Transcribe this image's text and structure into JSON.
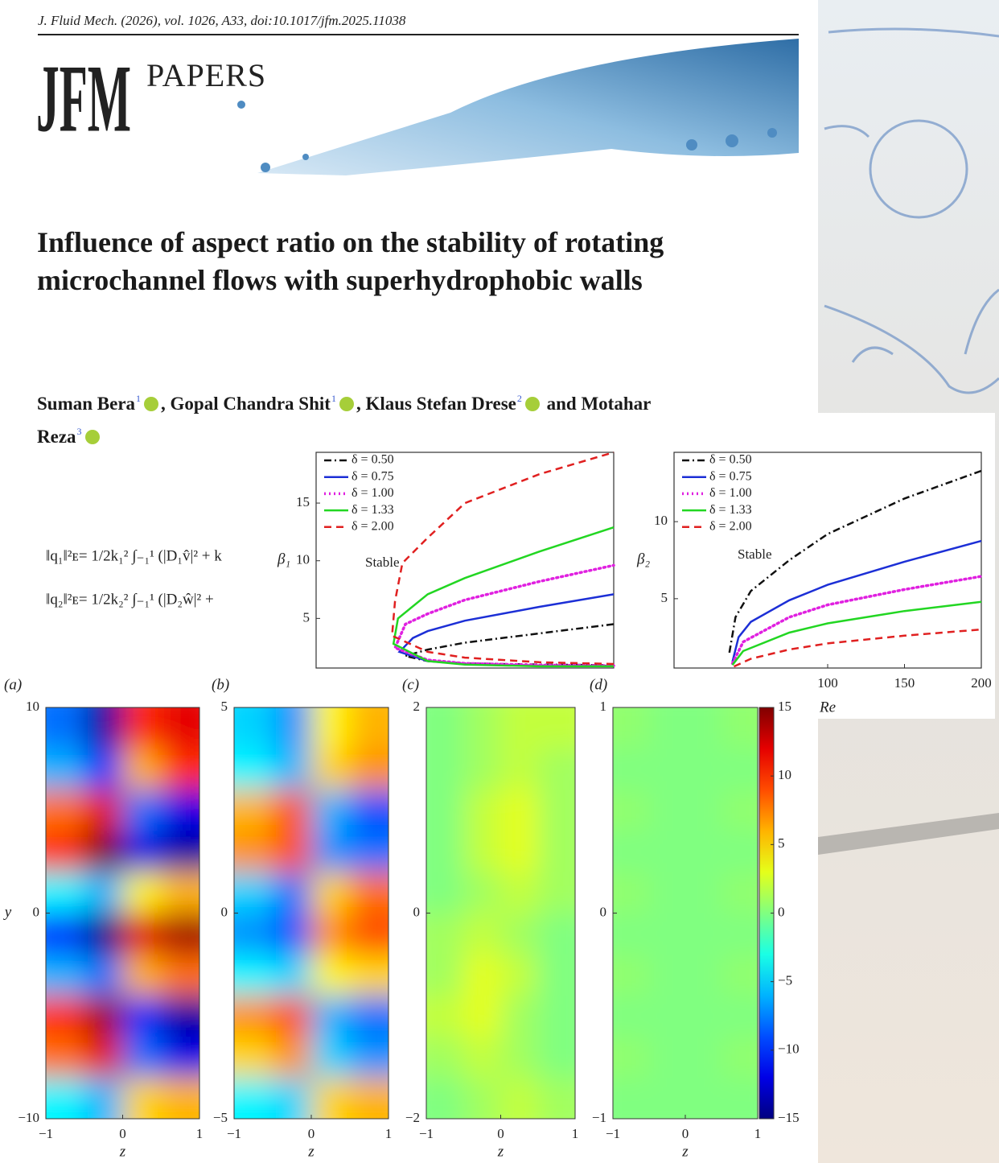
{
  "header": {
    "citation": "J. Fluid Mech. (2026), vol. 1026, A33, doi:10.1017/jfm.2025.11038",
    "logo": "JFM",
    "logo_subtitle": "PAPERS"
  },
  "title": "Influence of aspect ratio on the stability of rotating microchannel flows with superhydrophobic walls",
  "authors": [
    {
      "name": "Suman Bera",
      "affiliation": "1"
    },
    {
      "name": "Gopal Chandra Shit",
      "affiliation": "1"
    },
    {
      "name": "Klaus Stefan Drese",
      "affiliation": "2"
    },
    {
      "name": "Motahar Reza",
      "affiliation": "3"
    }
  ],
  "author_conjunction": "and",
  "equations": [
    "‖q₁‖²ᴇ= 1/2k₁² ∫₋₁¹ (|D₁v̂|² + k",
    "‖q₂‖²ᴇ= 1/2k₂² ∫₋₁¹ (|D₂ŵ|² +"
  ],
  "chart_data": [
    {
      "type": "line",
      "y_label": "β₁",
      "annotations": [
        "Stable"
      ],
      "xlim": [
        0,
        200
      ],
      "ylim": [
        0.7,
        19.4
      ],
      "yticks": [
        5,
        10,
        15
      ],
      "legend": "upper-left",
      "series": [
        {
          "name": "δ = 0.50",
          "color": "#111111",
          "dash": "dashdot",
          "x": [
            200,
            150,
            100,
            75,
            60,
            75,
            100,
            150,
            200
          ],
          "values": [
            0.95,
            1.0,
            1.1,
            1.3,
            1.75,
            2.3,
            2.9,
            3.7,
            4.5
          ]
        },
        {
          "name": "δ = 0.75",
          "color": "#1c2fd6",
          "dash": "solid",
          "x": [
            200,
            150,
            100,
            75,
            56,
            65,
            75,
            100,
            150,
            200
          ],
          "values": [
            0.9,
            0.9,
            1.05,
            1.3,
            2.1,
            3.3,
            3.9,
            4.8,
            6.0,
            7.1
          ]
        },
        {
          "name": "δ = 1.00",
          "color": "#e020e0",
          "dash": "dotted",
          "x": [
            200,
            150,
            100,
            75,
            53,
            60,
            75,
            100,
            150,
            200
          ],
          "values": [
            0.9,
            0.95,
            1.1,
            1.4,
            2.45,
            4.5,
            5.4,
            6.6,
            8.2,
            9.6
          ]
        },
        {
          "name": "δ = 1.33",
          "color": "#22d622",
          "dash": "solid",
          "x": [
            200,
            150,
            100,
            75,
            52,
            55,
            75,
            100,
            150,
            200
          ],
          "values": [
            0.85,
            0.85,
            1.0,
            1.3,
            2.8,
            5,
            7.1,
            8.5,
            10.8,
            12.9
          ]
        },
        {
          "name": "δ = 2.00",
          "color": "#e02020",
          "dash": "dashed",
          "x": [
            200,
            150,
            100,
            75,
            51,
            53,
            58,
            75,
            100,
            150,
            200
          ],
          "values": [
            1.05,
            1.2,
            1.6,
            2.1,
            3.5,
            6.5,
            9.8,
            12,
            15,
            17.5,
            19.4
          ]
        }
      ]
    },
    {
      "type": "line",
      "y_label": "β₂",
      "x_label": "Re",
      "annotations": [
        "Stable"
      ],
      "xlim": [
        0,
        200
      ],
      "ylim": [
        0.5,
        14.5
      ],
      "yticks": [
        5,
        10
      ],
      "xticks": [
        100,
        150,
        200
      ],
      "legend": "upper-left",
      "series": [
        {
          "name": "δ = 0.50",
          "color": "#111111",
          "dash": "dashdot",
          "x": [
            36,
            40,
            50,
            75,
            100,
            150,
            200
          ],
          "values": [
            1.5,
            3.8,
            5.5,
            7.5,
            9.2,
            11.5,
            13.3
          ]
        },
        {
          "name": "δ = 0.75",
          "color": "#1c2fd6",
          "dash": "solid",
          "x": [
            38,
            42,
            50,
            75,
            100,
            150,
            200
          ],
          "values": [
            0.9,
            2.5,
            3.5,
            4.9,
            5.9,
            7.4,
            8.75
          ]
        },
        {
          "name": "δ = 1.00",
          "color": "#e020e0",
          "dash": "dotted",
          "x": [
            38,
            45,
            75,
            100,
            150,
            200
          ],
          "values": [
            0.8,
            2.2,
            3.8,
            4.6,
            5.6,
            6.45
          ]
        },
        {
          "name": "δ = 1.33",
          "color": "#22d622",
          "dash": "solid",
          "x": [
            38,
            45,
            75,
            100,
            150,
            200
          ],
          "values": [
            0.7,
            1.6,
            2.8,
            3.4,
            4.2,
            4.8
          ]
        },
        {
          "name": "δ = 2.00",
          "color": "#e02020",
          "dash": "dashed",
          "x": [
            39,
            50,
            75,
            100,
            150,
            200
          ],
          "values": [
            0.6,
            1.1,
            1.7,
            2.1,
            2.6,
            3.0
          ]
        }
      ]
    },
    {
      "type": "heatmap",
      "panel_label": "(a)",
      "x_label": "z",
      "y_label": "y",
      "colormap": "jet",
      "clim": [
        -15,
        15
      ],
      "xlim": [
        -1,
        1
      ],
      "xticks": [
        {
          "value": -1,
          "label": "−1"
        },
        0,
        1
      ],
      "ylim": [
        -10,
        10
      ],
      "yticks": [
        {
          "value": -10,
          "label": "−10"
        },
        0,
        10
      ],
      "x": [
        -0.75,
        -0.25,
        0.25,
        0.75
      ],
      "y": [
        9,
        7,
        5,
        3,
        1,
        -1,
        -3,
        -5,
        -7,
        -9
      ],
      "values": [
        [
          -8,
          -14,
          10,
          12
        ],
        [
          -6,
          -10,
          6,
          10
        ],
        [
          8,
          12,
          -8,
          -12
        ],
        [
          10,
          15,
          -12,
          -14
        ],
        [
          -4,
          -6,
          4,
          6
        ],
        [
          -10,
          -15,
          12,
          14
        ],
        [
          -6,
          -8,
          6,
          8
        ],
        [
          10,
          14,
          -10,
          -14
        ],
        [
          8,
          12,
          -8,
          -12
        ],
        [
          -4,
          -6,
          5,
          6
        ]
      ]
    },
    {
      "type": "heatmap",
      "panel_label": "(b)",
      "x_label": "z",
      "colormap": "jet",
      "clim": [
        -15,
        15
      ],
      "xlim": [
        -1,
        1
      ],
      "xticks": [
        {
          "value": -1,
          "label": "−1"
        },
        0,
        1
      ],
      "ylim": [
        -5,
        5
      ],
      "yticks": [
        {
          "value": -5,
          "label": "−5"
        },
        0,
        5
      ],
      "x": [
        -0.75,
        -0.25,
        0.25,
        0.75
      ],
      "y": [
        4.5,
        3.5,
        2.5,
        1.5,
        0.5,
        -0.5,
        -1.5,
        -2.5,
        -3.5,
        -4.5
      ],
      "values": [
        [
          -5,
          -7,
          4,
          6
        ],
        [
          -4,
          -6,
          5,
          7
        ],
        [
          6,
          9,
          -6,
          -9
        ],
        [
          7,
          9,
          -7,
          -8
        ],
        [
          -5,
          -8,
          5,
          8
        ],
        [
          -7,
          -9,
          7,
          9
        ],
        [
          -4,
          -5,
          4,
          5
        ],
        [
          7,
          9,
          -6,
          -8
        ],
        [
          5,
          7,
          -5,
          -7
        ],
        [
          -4,
          -5,
          5,
          6
        ]
      ]
    },
    {
      "type": "heatmap",
      "panel_label": "(c)",
      "x_label": "z",
      "colormap": "jet",
      "clim": [
        -15,
        15
      ],
      "xlim": [
        -1,
        1
      ],
      "xticks": [
        {
          "value": -1,
          "label": "−1"
        },
        0,
        1
      ],
      "ylim": [
        -2,
        2
      ],
      "yticks": [
        {
          "value": -2,
          "label": "−2"
        },
        0,
        2
      ],
      "x": [
        -0.75,
        -0.25,
        0.25,
        0.75
      ],
      "y": [
        1.8,
        1.4,
        1,
        0.6,
        0.2,
        -0.2,
        -0.6,
        -1,
        -1.4,
        -1.8
      ],
      "values": [
        [
          0,
          1,
          2,
          2
        ],
        [
          0,
          1,
          2,
          1
        ],
        [
          0,
          2,
          3,
          1
        ],
        [
          0,
          2,
          3,
          1
        ],
        [
          0,
          1,
          2,
          1
        ],
        [
          1,
          2,
          1,
          0
        ],
        [
          1,
          3,
          2,
          0
        ],
        [
          2,
          3,
          1,
          0
        ],
        [
          1,
          2,
          1,
          0
        ],
        [
          0,
          1,
          2,
          1
        ]
      ]
    },
    {
      "type": "heatmap",
      "panel_label": "(d)",
      "x_label": "z",
      "colormap": "jet",
      "clim": [
        -15,
        15
      ],
      "xlim": [
        -1,
        1
      ],
      "xticks": [
        {
          "value": -1,
          "label": "−1"
        },
        0,
        1
      ],
      "ylim": [
        -1,
        1
      ],
      "yticks": [
        {
          "value": -1,
          "label": "−1"
        },
        0,
        1
      ],
      "x": [
        -0.75,
        -0.25,
        0.25,
        0.75
      ],
      "y": [
        0.9,
        0.7,
        0.5,
        0.3,
        0.1,
        -0.1,
        -0.3,
        -0.5,
        -0.7,
        -0.9
      ],
      "values": [
        [
          0.5,
          0,
          0,
          0.5
        ],
        [
          0,
          0,
          0,
          0
        ],
        [
          0.5,
          0,
          0,
          0.5
        ],
        [
          0,
          0,
          0,
          0
        ],
        [
          0.5,
          0,
          0,
          0.5
        ],
        [
          0,
          0,
          0,
          0
        ],
        [
          0.5,
          0,
          0,
          0.5
        ],
        [
          0,
          0,
          0,
          0
        ],
        [
          0.5,
          0,
          0,
          0.5
        ],
        [
          0,
          0,
          0,
          0
        ]
      ],
      "colorbar": {
        "lim": [
          -15,
          15
        ],
        "ticks": [
          15,
          10,
          5,
          0,
          {
            "value": -5,
            "label": "−5"
          },
          {
            "value": -10,
            "label": "−10"
          },
          {
            "value": -15,
            "label": "−15"
          }
        ]
      }
    }
  ]
}
